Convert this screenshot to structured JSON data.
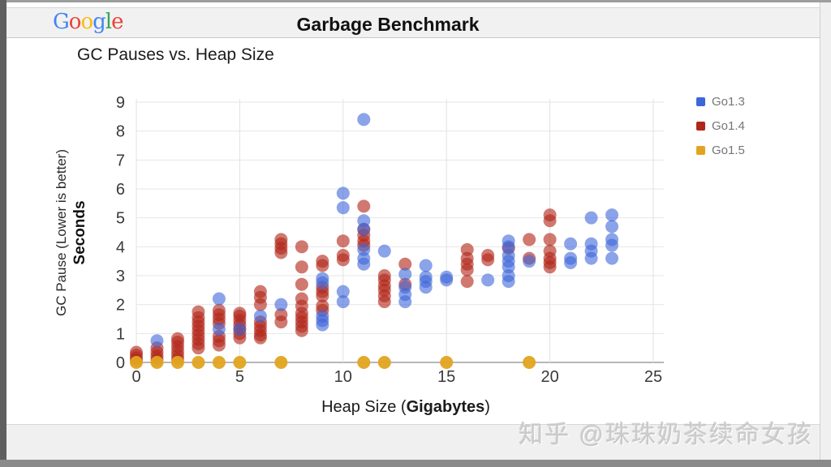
{
  "header": {
    "title": "Garbage Benchmark",
    "logo_letters": [
      {
        "ch": "G",
        "color": "#4285F4"
      },
      {
        "ch": "o",
        "color": "#EA4335"
      },
      {
        "ch": "o",
        "color": "#FBBC05"
      },
      {
        "ch": "g",
        "color": "#4285F4"
      },
      {
        "ch": "l",
        "color": "#34A853"
      },
      {
        "ch": "e",
        "color": "#EA4335"
      }
    ]
  },
  "watermark": "知乎 @珠珠奶茶续命女孩",
  "chart_data": {
    "type": "scatter",
    "title": "GC Pauses vs. Heap Size",
    "xlabel": {
      "pre": "Heap Size (",
      "bold": "Gigabytes",
      "post": ")"
    },
    "ylabel": {
      "line1": "GC Pause (Lower is better)",
      "line2": "Seconds"
    },
    "xlim": [
      0,
      25
    ],
    "ylim": [
      0,
      9
    ],
    "x_ticks": [
      0,
      5,
      10,
      15,
      20,
      25
    ],
    "y_ticks": [
      0,
      1,
      2,
      3,
      4,
      5,
      6,
      7,
      8,
      9
    ],
    "grid": true,
    "legend_position": "right",
    "point_radius": 8,
    "series": [
      {
        "name": "Go1.3",
        "color": "#3D66D9",
        "opacity": 0.6,
        "points": [
          [
            1,
            0.75
          ],
          [
            4,
            2.2
          ],
          [
            4,
            1.15
          ],
          [
            5,
            1.15
          ],
          [
            6,
            1.6
          ],
          [
            7,
            2.0
          ],
          [
            9,
            2.9
          ],
          [
            9,
            2.75
          ],
          [
            9,
            1.6
          ],
          [
            9,
            1.45
          ],
          [
            9,
            1.3
          ],
          [
            10,
            5.85
          ],
          [
            10,
            5.35
          ],
          [
            10,
            2.45
          ],
          [
            10,
            2.1
          ],
          [
            11,
            8.4
          ],
          [
            11,
            4.9
          ],
          [
            11,
            4.6
          ],
          [
            11,
            3.9
          ],
          [
            11,
            3.6
          ],
          [
            11,
            3.4
          ],
          [
            12,
            3.85
          ],
          [
            13,
            3.05
          ],
          [
            13,
            2.6
          ],
          [
            13,
            2.35
          ],
          [
            13,
            2.1
          ],
          [
            14,
            3.35
          ],
          [
            14,
            2.95
          ],
          [
            14,
            2.8
          ],
          [
            14,
            2.6
          ],
          [
            15,
            2.95
          ],
          [
            15,
            2.85
          ],
          [
            17,
            2.85
          ],
          [
            18,
            4.2
          ],
          [
            18,
            4.0
          ],
          [
            18,
            3.7
          ],
          [
            18,
            3.5
          ],
          [
            18,
            3.3
          ],
          [
            18,
            3.0
          ],
          [
            18,
            2.8
          ],
          [
            19,
            3.5
          ],
          [
            21,
            4.1
          ],
          [
            21,
            3.6
          ],
          [
            21,
            3.45
          ],
          [
            22,
            5.0
          ],
          [
            22,
            4.1
          ],
          [
            22,
            3.85
          ],
          [
            22,
            3.6
          ],
          [
            23,
            5.1
          ],
          [
            23,
            4.7
          ],
          [
            23,
            4.25
          ],
          [
            23,
            4.05
          ],
          [
            23,
            3.6
          ]
        ]
      },
      {
        "name": "Go1.4",
        "color": "#B1261A",
        "opacity": 0.62,
        "points": [
          [
            0,
            0.07
          ],
          [
            0,
            0.15
          ],
          [
            0,
            0.25
          ],
          [
            0,
            0.35
          ],
          [
            1,
            0.1
          ],
          [
            1,
            0.22
          ],
          [
            1,
            0.35
          ],
          [
            1,
            0.5
          ],
          [
            2,
            0.12
          ],
          [
            2,
            0.25
          ],
          [
            2,
            0.4
          ],
          [
            2,
            0.55
          ],
          [
            2,
            0.7
          ],
          [
            2,
            0.82
          ],
          [
            3,
            0.5
          ],
          [
            3,
            0.65
          ],
          [
            3,
            0.8
          ],
          [
            3,
            0.95
          ],
          [
            3,
            1.1
          ],
          [
            3,
            1.25
          ],
          [
            3,
            1.4
          ],
          [
            3,
            1.55
          ],
          [
            3,
            1.75
          ],
          [
            4,
            0.6
          ],
          [
            4,
            0.75
          ],
          [
            4,
            0.9
          ],
          [
            4,
            1.35
          ],
          [
            4,
            1.5
          ],
          [
            4,
            1.65
          ],
          [
            4,
            1.8
          ],
          [
            5,
            0.85
          ],
          [
            5,
            1.0
          ],
          [
            5,
            1.15
          ],
          [
            5,
            1.3
          ],
          [
            5,
            1.45
          ],
          [
            5,
            1.6
          ],
          [
            5,
            1.7
          ],
          [
            6,
            0.85
          ],
          [
            6,
            0.95
          ],
          [
            6,
            1.1
          ],
          [
            6,
            1.25
          ],
          [
            6,
            1.4
          ],
          [
            6,
            2.0
          ],
          [
            6,
            2.25
          ],
          [
            6,
            2.45
          ],
          [
            7,
            1.4
          ],
          [
            7,
            1.65
          ],
          [
            7,
            3.8
          ],
          [
            7,
            3.95
          ],
          [
            7,
            4.1
          ],
          [
            7,
            4.25
          ],
          [
            8,
            1.1
          ],
          [
            8,
            1.25
          ],
          [
            8,
            1.4
          ],
          [
            8,
            1.55
          ],
          [
            8,
            1.7
          ],
          [
            8,
            1.95
          ],
          [
            8,
            2.2
          ],
          [
            8,
            2.7
          ],
          [
            8,
            3.3
          ],
          [
            8,
            4.0
          ],
          [
            9,
            1.8
          ],
          [
            9,
            1.95
          ],
          [
            9,
            2.3
          ],
          [
            9,
            2.45
          ],
          [
            9,
            2.6
          ],
          [
            9,
            3.35
          ],
          [
            9,
            3.5
          ],
          [
            10,
            3.55
          ],
          [
            10,
            3.7
          ],
          [
            10,
            4.2
          ],
          [
            11,
            4.05
          ],
          [
            11,
            4.2
          ],
          [
            11,
            4.4
          ],
          [
            11,
            4.6
          ],
          [
            11,
            5.4
          ],
          [
            12,
            2.1
          ],
          [
            12,
            2.3
          ],
          [
            12,
            2.5
          ],
          [
            12,
            2.65
          ],
          [
            12,
            2.85
          ],
          [
            12,
            3.0
          ],
          [
            13,
            2.7
          ],
          [
            13,
            3.4
          ],
          [
            16,
            2.8
          ],
          [
            16,
            3.2
          ],
          [
            16,
            3.4
          ],
          [
            16,
            3.6
          ],
          [
            16,
            3.9
          ],
          [
            17,
            3.55
          ],
          [
            17,
            3.7
          ],
          [
            18,
            3.95
          ],
          [
            19,
            3.6
          ],
          [
            19,
            4.25
          ],
          [
            20,
            3.3
          ],
          [
            20,
            3.45
          ],
          [
            20,
            3.6
          ],
          [
            20,
            3.85
          ],
          [
            20,
            4.25
          ],
          [
            20,
            4.9
          ],
          [
            20,
            5.1
          ]
        ]
      },
      {
        "name": "Go1.5",
        "color": "#E2A420",
        "opacity": 0.95,
        "points": [
          [
            0,
            0
          ],
          [
            1,
            0
          ],
          [
            2,
            0
          ],
          [
            3,
            0
          ],
          [
            4,
            0
          ],
          [
            5,
            0
          ],
          [
            7,
            0
          ],
          [
            11,
            0
          ],
          [
            12,
            0
          ],
          [
            15,
            0
          ],
          [
            19,
            0
          ]
        ]
      }
    ]
  }
}
